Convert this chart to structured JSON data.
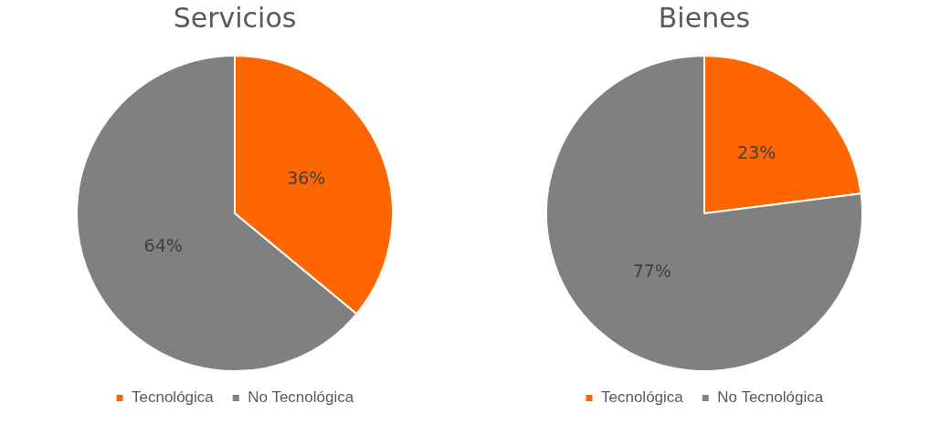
{
  "chart_data": [
    {
      "type": "pie",
      "title": "Servicios",
      "categories": [
        "Tecnológica",
        "No Tecnológica"
      ],
      "values": [
        36,
        64
      ],
      "colors": [
        "#ff6600",
        "#808080"
      ],
      "value_labels": [
        "36%",
        "64%"
      ],
      "legend": "bottom"
    },
    {
      "type": "pie",
      "title": "Bienes",
      "categories": [
        "Tecnológica",
        "No Tecnológica"
      ],
      "values": [
        23,
        77
      ],
      "colors": [
        "#ff6600",
        "#808080"
      ],
      "value_labels": [
        "23%",
        "77%"
      ],
      "legend": "bottom"
    }
  ]
}
